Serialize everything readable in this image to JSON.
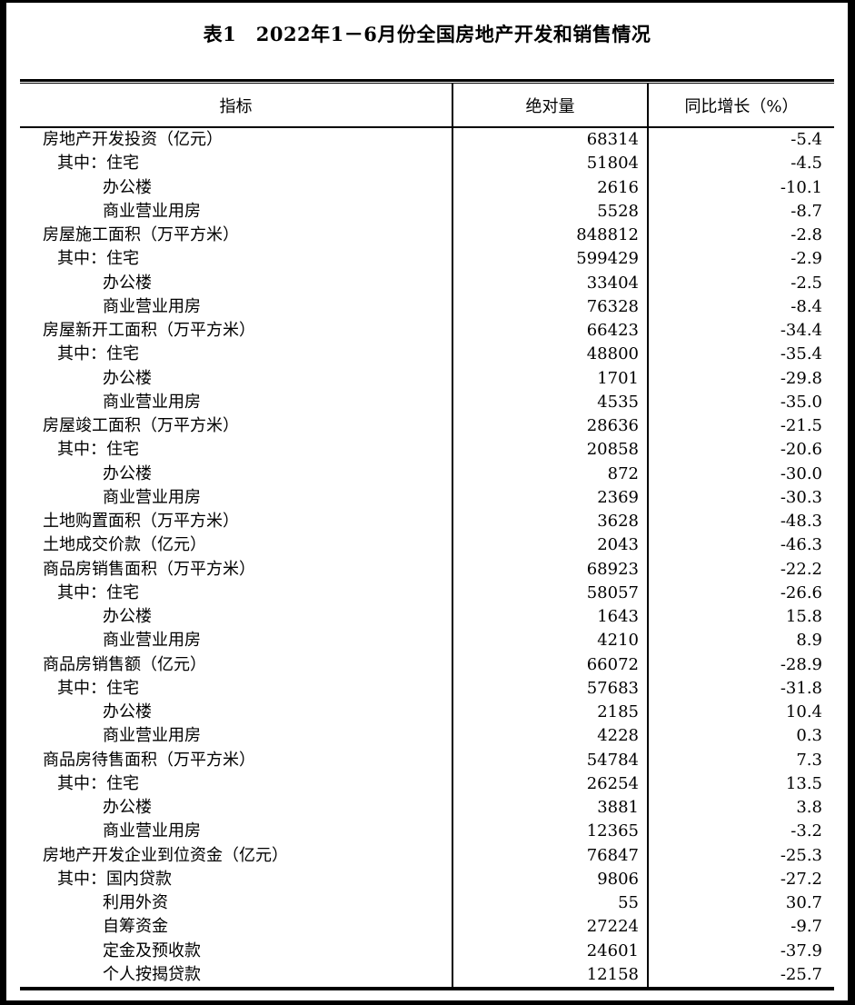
{
  "page": {
    "background_color": "#ffffff",
    "frame_color": "#000000",
    "text_color": "#000000"
  },
  "title": "表1　2022年1－6月份全国房地产开发和销售情况",
  "table": {
    "columns": [
      "指标",
      "绝对量",
      "同比增长（%）"
    ],
    "rows": [
      {
        "indicator": "房地产开发投资（亿元）",
        "level": 0,
        "absolute": "68314",
        "growth": "-5.4"
      },
      {
        "indicator": "其中：住宅",
        "level": 1,
        "absolute": "51804",
        "growth": "-4.5"
      },
      {
        "indicator": "办公楼",
        "level": 2,
        "absolute": "2616",
        "growth": "-10.1"
      },
      {
        "indicator": "商业营业用房",
        "level": 2,
        "absolute": "5528",
        "growth": "-8.7"
      },
      {
        "indicator": "房屋施工面积（万平方米）",
        "level": 0,
        "absolute": "848812",
        "growth": "-2.8"
      },
      {
        "indicator": "其中：住宅",
        "level": 1,
        "absolute": "599429",
        "growth": "-2.9"
      },
      {
        "indicator": "办公楼",
        "level": 2,
        "absolute": "33404",
        "growth": "-2.5"
      },
      {
        "indicator": "商业营业用房",
        "level": 2,
        "absolute": "76328",
        "growth": "-8.4"
      },
      {
        "indicator": "房屋新开工面积（万平方米）",
        "level": 0,
        "absolute": "66423",
        "growth": "-34.4"
      },
      {
        "indicator": "其中：住宅",
        "level": 1,
        "absolute": "48800",
        "growth": "-35.4"
      },
      {
        "indicator": "办公楼",
        "level": 2,
        "absolute": "1701",
        "growth": "-29.8"
      },
      {
        "indicator": "商业营业用房",
        "level": 2,
        "absolute": "4535",
        "growth": "-35.0"
      },
      {
        "indicator": "房屋竣工面积（万平方米）",
        "level": 0,
        "absolute": "28636",
        "growth": "-21.5"
      },
      {
        "indicator": "其中：住宅",
        "level": 1,
        "absolute": "20858",
        "growth": "-20.6"
      },
      {
        "indicator": "办公楼",
        "level": 2,
        "absolute": "872",
        "growth": "-30.0"
      },
      {
        "indicator": "商业营业用房",
        "level": 2,
        "absolute": "2369",
        "growth": "-30.3"
      },
      {
        "indicator": "土地购置面积（万平方米）",
        "level": 0,
        "absolute": "3628",
        "growth": "-48.3"
      },
      {
        "indicator": "土地成交价款（亿元）",
        "level": 0,
        "absolute": "2043",
        "growth": "-46.3"
      },
      {
        "indicator": "商品房销售面积（万平方米）",
        "level": 0,
        "absolute": "68923",
        "growth": "-22.2"
      },
      {
        "indicator": "其中：住宅",
        "level": 1,
        "absolute": "58057",
        "growth": "-26.6"
      },
      {
        "indicator": "办公楼",
        "level": 2,
        "absolute": "1643",
        "growth": "15.8"
      },
      {
        "indicator": "商业营业用房",
        "level": 2,
        "absolute": "4210",
        "growth": "8.9"
      },
      {
        "indicator": "商品房销售额（亿元）",
        "level": 0,
        "absolute": "66072",
        "growth": "-28.9"
      },
      {
        "indicator": "其中：住宅",
        "level": 1,
        "absolute": "57683",
        "growth": "-31.8"
      },
      {
        "indicator": "办公楼",
        "level": 2,
        "absolute": "2185",
        "growth": "10.4"
      },
      {
        "indicator": "商业营业用房",
        "level": 2,
        "absolute": "4228",
        "growth": "0.3"
      },
      {
        "indicator": "商品房待售面积（万平方米）",
        "level": 0,
        "absolute": "54784",
        "growth": "7.3"
      },
      {
        "indicator": "其中：住宅",
        "level": 1,
        "absolute": "26254",
        "growth": "13.5"
      },
      {
        "indicator": "办公楼",
        "level": 2,
        "absolute": "3881",
        "growth": "3.8"
      },
      {
        "indicator": "商业营业用房",
        "level": 2,
        "absolute": "12365",
        "growth": "-3.2"
      },
      {
        "indicator": "房地产开发企业到位资金（亿元）",
        "level": 0,
        "absolute": "76847",
        "growth": "-25.3"
      },
      {
        "indicator": "其中：国内贷款",
        "level": 1,
        "absolute": "9806",
        "growth": "-27.2"
      },
      {
        "indicator": "利用外资",
        "level": 2,
        "absolute": "55",
        "growth": "30.7"
      },
      {
        "indicator": "自筹资金",
        "level": 2,
        "absolute": "27224",
        "growth": "-9.7"
      },
      {
        "indicator": "定金及预收款",
        "level": 2,
        "absolute": "24601",
        "growth": "-37.9"
      },
      {
        "indicator": "个人按揭贷款",
        "level": 2,
        "absolute": "12158",
        "growth": "-25.7"
      }
    ]
  }
}
